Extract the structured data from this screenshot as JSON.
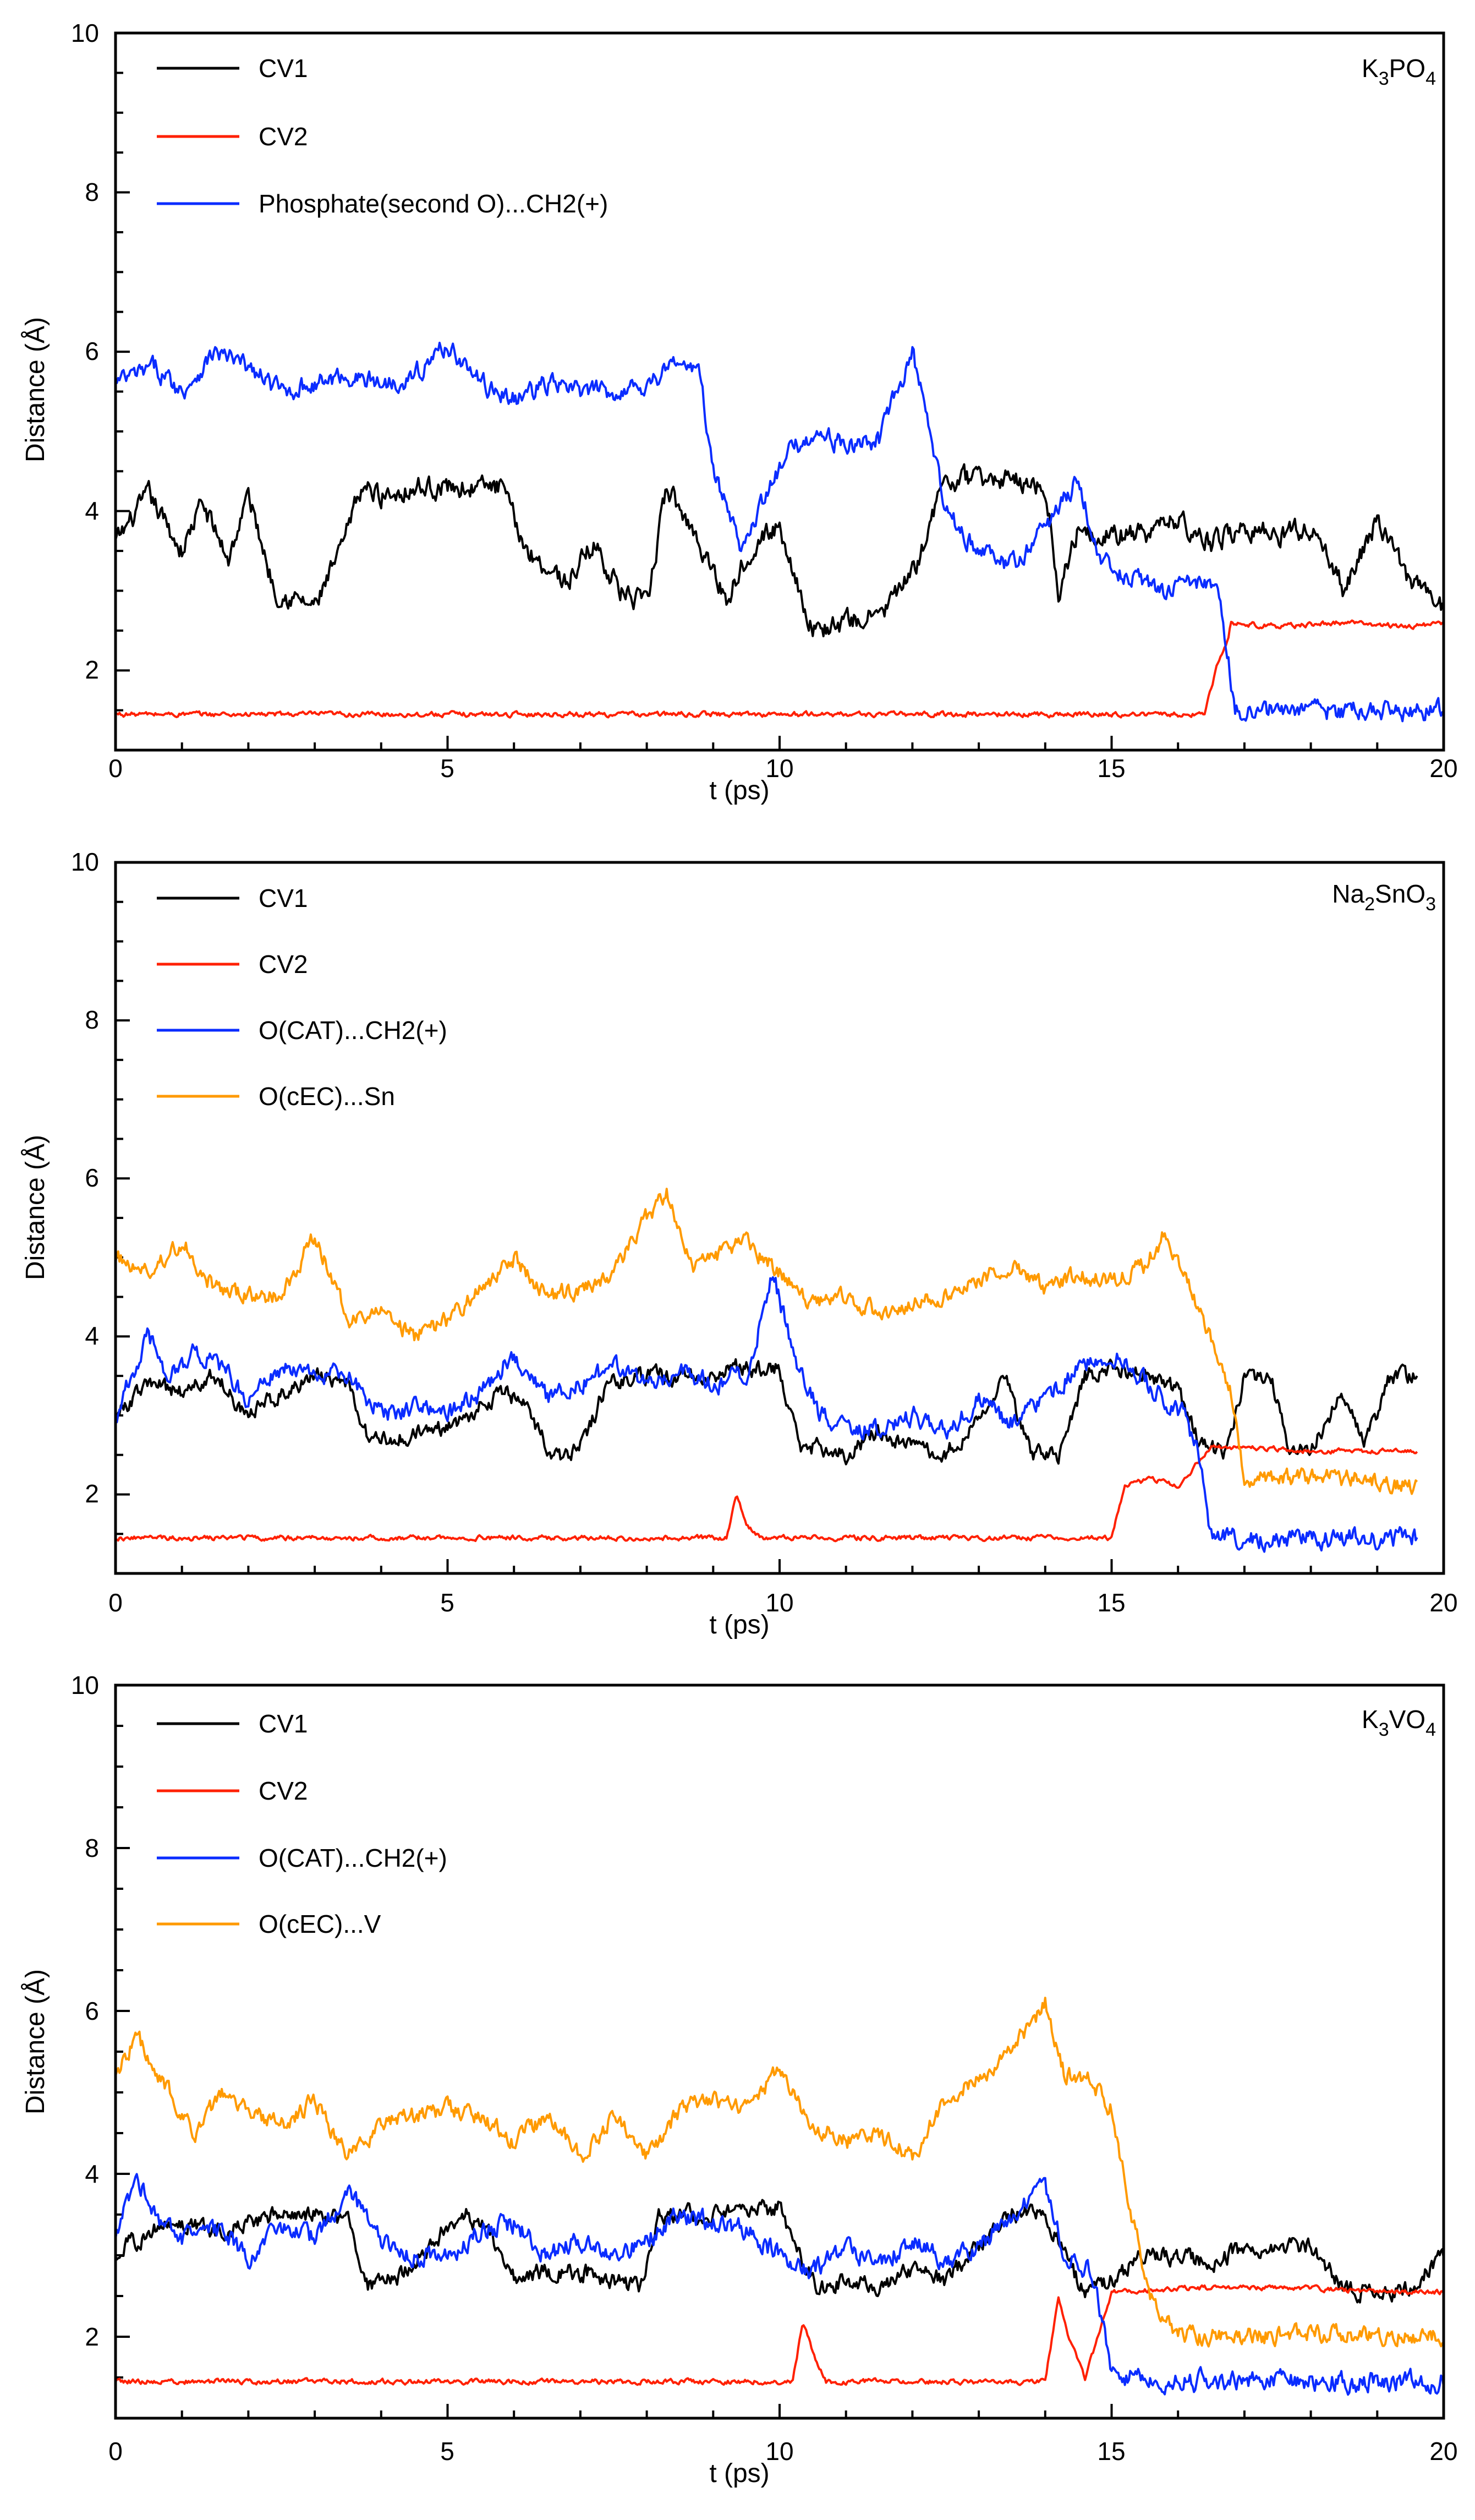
{
  "colors": {
    "cv1": "#000000",
    "cv2": "#ff2000",
    "blue": "#0a2cff",
    "orange": "#ff9a00",
    "axis": "#000000"
  },
  "chart_data": [
    {
      "type": "line",
      "panel_label": "K3PO4",
      "xlabel": "t (ps)",
      "ylabel": "Distance (Å)",
      "xlim": [
        0,
        20
      ],
      "ylim": [
        1,
        10
      ],
      "x_ticks": [
        "0",
        "5",
        "10",
        "15",
        "20"
      ],
      "y_ticks": [
        "2",
        "4",
        "6",
        "8",
        "10"
      ],
      "legend_position": "top-left",
      "series": [
        {
          "name": "CV1",
          "color_key": "cv1",
          "noise": 0.22,
          "x": [
            0,
            0.5,
            1.0,
            1.3,
            1.7,
            2.0,
            2.4,
            3.0,
            3.4,
            3.7,
            4.0,
            4.5,
            5.0,
            5.5,
            5.8,
            6.2,
            6.8,
            7.2,
            7.6,
            8.0,
            8.3,
            8.8,
            9.2,
            9.6,
            10.0,
            10.5,
            11.0,
            11.5,
            12.0,
            12.5,
            13.0,
            13.5,
            14.0,
            14.2,
            14.5,
            15.0,
            15.5,
            16.0,
            16.5,
            17.0,
            17.5,
            18.0,
            18.5,
            19.0,
            19.5,
            20.0
          ],
          "y": [
            3.6,
            4.2,
            3.5,
            4.1,
            3.4,
            4.2,
            3.0,
            2.8,
            3.5,
            4.3,
            4.2,
            4.3,
            4.3,
            4.3,
            4.3,
            3.5,
            3.1,
            3.6,
            3.0,
            2.8,
            4.3,
            3.6,
            2.9,
            3.6,
            3.8,
            2.5,
            2.6,
            2.7,
            3.2,
            4.4,
            4.4,
            4.4,
            4.3,
            3.0,
            3.8,
            3.7,
            3.7,
            3.9,
            3.6,
            3.8,
            3.7,
            3.8,
            3.0,
            3.9,
            3.1,
            2.8
          ]
        },
        {
          "name": "CV2",
          "color_key": "cv2",
          "noise": 0.05,
          "x": [
            0,
            16.4,
            16.6,
            16.75,
            16.8,
            17.5,
            18.5,
            19.5,
            20.0
          ],
          "y": [
            1.45,
            1.45,
            2.1,
            2.4,
            2.6,
            2.55,
            2.6,
            2.55,
            2.6
          ]
        },
        {
          "name": "Phosphate(second O)...CH2(+)",
          "color_key": "blue",
          "noise": 0.2,
          "x": [
            0,
            0.6,
            1.0,
            1.5,
            2.0,
            2.5,
            3.0,
            3.5,
            4.0,
            4.5,
            5.0,
            5.5,
            6.0,
            6.5,
            7.0,
            7.5,
            8.0,
            8.5,
            8.8,
            9.0,
            9.4,
            9.8,
            10.2,
            10.6,
            11.0,
            11.5,
            12.0,
            12.5,
            13.0,
            13.5,
            14.0,
            14.5,
            14.8,
            15.2,
            15.8,
            16.3,
            16.6,
            16.75,
            16.85,
            17.5,
            18.5,
            19.5,
            20.0
          ],
          "y": [
            5.6,
            5.8,
            5.5,
            6.0,
            5.8,
            5.5,
            5.6,
            5.7,
            5.6,
            5.7,
            6.1,
            5.6,
            5.4,
            5.6,
            5.5,
            5.5,
            5.6,
            5.9,
            5.7,
            4.5,
            3.6,
            4.2,
            4.8,
            5.0,
            4.8,
            4.9,
            6.0,
            4.0,
            3.5,
            3.3,
            3.8,
            4.4,
            3.4,
            3.2,
            3.0,
            3.1,
            3.0,
            2.2,
            1.5,
            1.5,
            1.5,
            1.5,
            1.5
          ]
        }
      ]
    },
    {
      "type": "line",
      "panel_label": "Na2SnO3",
      "xlabel": "t (ps)",
      "ylabel": "Distance (Å)",
      "xlim": [
        0,
        20
      ],
      "ylim": [
        1,
        10
      ],
      "x_ticks": [
        "0",
        "5",
        "10",
        "15",
        "20"
      ],
      "y_ticks": [
        "2",
        "4",
        "6",
        "8",
        "10"
      ],
      "legend_position": "top-left",
      "series": [
        {
          "name": "CV1",
          "color_key": "cv1",
          "noise": 0.18,
          "x": [
            0,
            0.5,
            1.0,
            1.5,
            2.0,
            2.5,
            3.0,
            3.5,
            3.8,
            4.2,
            4.8,
            5.3,
            5.8,
            6.2,
            6.6,
            7.0,
            7.4,
            7.8,
            8.2,
            8.8,
            9.4,
            10.0,
            10.3,
            10.6,
            11.0,
            11.5,
            12.0,
            12.5,
            13.0,
            13.4,
            13.8,
            14.2,
            14.6,
            15.0,
            15.5,
            16.0,
            16.3,
            16.7,
            17.0,
            17.4,
            17.7,
            18.0,
            18.5,
            18.8,
            19.2,
            19.6
          ],
          "y": [
            3.0,
            3.4,
            3.3,
            3.5,
            3.0,
            3.3,
            3.5,
            3.4,
            2.7,
            2.7,
            2.8,
            3.0,
            3.3,
            3.1,
            2.4,
            2.6,
            3.4,
            3.5,
            3.5,
            3.5,
            3.6,
            3.6,
            2.6,
            2.6,
            2.5,
            2.8,
            2.6,
            2.5,
            3.0,
            3.5,
            2.5,
            2.5,
            3.5,
            3.6,
            3.5,
            3.3,
            2.7,
            2.5,
            3.5,
            3.5,
            2.5,
            2.6,
            3.3,
            2.6,
            3.5,
            3.5
          ]
        },
        {
          "name": "CV2",
          "color_key": "cv2",
          "noise": 0.05,
          "x": [
            0,
            9.2,
            9.35,
            9.5,
            9.7,
            15.0,
            15.2,
            15.6,
            16.0,
            16.3,
            16.5,
            17.0,
            18.0,
            19.0,
            19.6
          ],
          "y": [
            1.45,
            1.45,
            2.0,
            1.6,
            1.45,
            1.45,
            2.1,
            2.2,
            2.1,
            2.4,
            2.6,
            2.6,
            2.55,
            2.55,
            2.55
          ]
        },
        {
          "name": "O(CAT)...CH2(+)",
          "color_key": "blue",
          "noise": 0.2,
          "x": [
            0,
            0.5,
            0.8,
            1.2,
            1.6,
            2.0,
            2.5,
            3.0,
            3.5,
            3.8,
            4.2,
            4.6,
            5.0,
            5.5,
            6.0,
            6.5,
            7.0,
            7.5,
            8.0,
            8.5,
            9.0,
            9.5,
            9.9,
            10.2,
            10.6,
            11.0,
            11.5,
            12.0,
            12.5,
            13.0,
            13.5,
            14.0,
            14.5,
            15.0,
            15.4,
            15.8,
            16.1,
            16.3,
            16.5,
            17.0,
            18.0,
            19.0,
            19.6
          ],
          "y": [
            3.0,
            4.0,
            3.5,
            3.8,
            3.6,
            3.2,
            3.6,
            3.5,
            3.5,
            3.2,
            3.0,
            3.2,
            3.0,
            3.3,
            3.8,
            3.2,
            3.4,
            3.6,
            3.4,
            3.6,
            3.4,
            3.5,
            4.8,
            3.8,
            3.0,
            2.9,
            2.8,
            3.0,
            2.8,
            3.2,
            2.9,
            3.2,
            3.6,
            3.8,
            3.5,
            3.2,
            3.0,
            2.5,
            1.5,
            1.45,
            1.45,
            1.45,
            1.45
          ]
        },
        {
          "name": "O(cEC)...Sn",
          "color_key": "orange",
          "noise": 0.18,
          "x": [
            0,
            0.5,
            1.0,
            1.5,
            2.0,
            2.5,
            3.0,
            3.5,
            4.0,
            4.5,
            5.0,
            5.5,
            6.0,
            6.5,
            7.0,
            7.5,
            8.0,
            8.3,
            8.7,
            9.0,
            9.5,
            10.0,
            10.5,
            11.0,
            11.5,
            12.0,
            12.5,
            13.0,
            13.5,
            14.0,
            14.5,
            15.0,
            15.5,
            15.8,
            16.2,
            16.5,
            16.8,
            17.0,
            17.5,
            18.0,
            18.5,
            19.0,
            19.6
          ],
          "y": [
            5.0,
            4.8,
            5.2,
            4.6,
            4.5,
            4.5,
            5.3,
            4.2,
            4.3,
            4.0,
            4.2,
            4.6,
            5.0,
            4.5,
            4.6,
            4.8,
            5.5,
            5.8,
            4.9,
            5.0,
            5.2,
            4.8,
            4.4,
            4.5,
            4.3,
            4.4,
            4.5,
            4.7,
            4.9,
            4.6,
            4.8,
            4.7,
            4.9,
            5.3,
            4.6,
            4.0,
            3.3,
            2.2,
            2.2,
            2.2,
            2.2,
            2.2,
            2.1
          ]
        }
      ]
    },
    {
      "type": "line",
      "panel_label": "K3VO4",
      "xlabel": "t (ps)",
      "ylabel": "Distance (Å)",
      "xlim": [
        0,
        20
      ],
      "ylim": [
        1,
        10
      ],
      "x_ticks": [
        "0",
        "5",
        "10",
        "15",
        "20"
      ],
      "y_ticks": [
        "2",
        "4",
        "6",
        "8",
        "10"
      ],
      "legend_position": "top-left",
      "series": [
        {
          "name": "CV1",
          "color_key": "cv1",
          "noise": 0.18,
          "x": [
            0,
            0.5,
            1.0,
            1.5,
            2.0,
            2.5,
            3.0,
            3.5,
            3.8,
            4.2,
            4.8,
            5.3,
            5.6,
            6.0,
            6.5,
            7.0,
            7.5,
            7.9,
            8.2,
            8.6,
            9.0,
            9.5,
            10.0,
            10.3,
            10.6,
            11.0,
            11.5,
            12.0,
            12.5,
            13.0,
            13.5,
            14.0,
            14.3,
            14.6,
            15.0,
            15.5,
            16.0,
            16.5,
            17.0,
            17.5,
            18.0,
            18.5,
            19.0,
            19.5,
            20.0
          ],
          "y": [
            3.0,
            3.3,
            3.4,
            3.3,
            3.4,
            3.5,
            3.5,
            3.4,
            2.6,
            2.7,
            3.2,
            3.5,
            3.3,
            2.7,
            2.8,
            2.8,
            2.7,
            2.6,
            3.5,
            3.5,
            3.5,
            3.5,
            3.6,
            3.0,
            2.6,
            2.7,
            2.6,
            2.8,
            2.7,
            3.1,
            3.5,
            3.5,
            3.0,
            2.5,
            2.7,
            3.0,
            3.0,
            2.9,
            3.1,
            3.1,
            3.1,
            2.6,
            2.5,
            2.6,
            3.0
          ]
        },
        {
          "name": "CV2",
          "color_key": "cv2",
          "noise": 0.05,
          "x": [
            0,
            10.2,
            10.35,
            10.5,
            10.7,
            14.0,
            14.2,
            14.35,
            14.6,
            14.8,
            15.0,
            16.0,
            17.0,
            18.0,
            19.0,
            20.0
          ],
          "y": [
            1.45,
            1.45,
            2.2,
            1.8,
            1.45,
            1.45,
            2.5,
            2.0,
            1.5,
            2.0,
            2.55,
            2.6,
            2.6,
            2.6,
            2.55,
            2.55
          ]
        },
        {
          "name": "O(CAT)...CH2(+)",
          "color_key": "blue",
          "noise": 0.2,
          "x": [
            0,
            0.3,
            0.7,
            1.0,
            1.5,
            2.0,
            2.5,
            3.0,
            3.5,
            4.0,
            4.5,
            5.0,
            5.5,
            6.0,
            6.5,
            7.0,
            7.5,
            8.0,
            8.5,
            9.0,
            9.5,
            10.0,
            10.5,
            11.0,
            11.5,
            12.0,
            12.5,
            13.0,
            13.5,
            14.0,
            14.3,
            14.7,
            14.9,
            15.0,
            15.5,
            16.0,
            17.0,
            18.0,
            19.0,
            20.0
          ],
          "y": [
            3.2,
            4.0,
            3.4,
            3.2,
            3.3,
            3.0,
            3.3,
            3.2,
            3.8,
            3.2,
            3.0,
            3.0,
            3.3,
            3.4,
            3.0,
            3.2,
            3.0,
            3.2,
            3.5,
            3.4,
            3.3,
            3.0,
            2.8,
            3.1,
            2.9,
            3.2,
            2.9,
            3.1,
            3.5,
            3.8,
            3.0,
            2.8,
            2.0,
            1.5,
            1.5,
            1.45,
            1.45,
            1.45,
            1.45,
            1.45
          ]
        },
        {
          "name": "O(cEC)...V",
          "color_key": "orange",
          "noise": 0.18,
          "x": [
            0,
            0.3,
            0.8,
            1.2,
            1.6,
            2.0,
            2.5,
            3.0,
            3.5,
            4.0,
            4.5,
            5.0,
            5.5,
            6.0,
            6.5,
            7.0,
            7.5,
            8.0,
            8.5,
            9.0,
            9.5,
            10.0,
            10.5,
            11.0,
            11.5,
            12.0,
            12.5,
            13.0,
            13.5,
            14.0,
            14.3,
            14.6,
            15.0,
            15.3,
            15.6,
            15.9,
            16.2,
            17.0,
            18.0,
            19.0,
            20.0
          ],
          "y": [
            5.2,
            5.7,
            5.0,
            4.5,
            5.0,
            4.8,
            4.6,
            4.9,
            4.2,
            4.6,
            4.7,
            4.8,
            4.7,
            4.4,
            4.7,
            4.2,
            4.7,
            4.2,
            4.8,
            4.9,
            4.8,
            5.3,
            4.6,
            4.4,
            4.5,
            4.2,
            4.9,
            5.2,
            5.5,
            6.1,
            5.2,
            5.2,
            4.8,
            3.5,
            2.5,
            2.1,
            2.0,
            2.0,
            2.05,
            2.0,
            2.0
          ]
        }
      ]
    }
  ]
}
